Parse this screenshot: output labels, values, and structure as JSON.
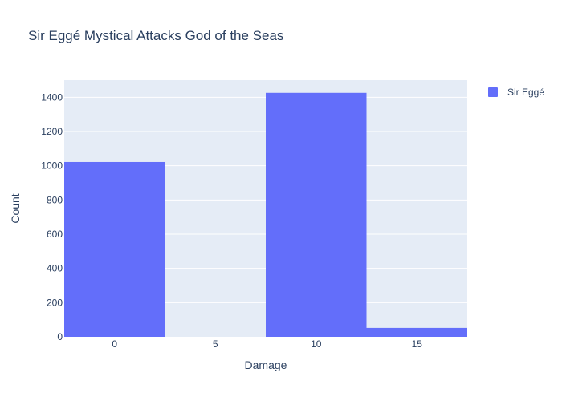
{
  "chart_data": {
    "type": "bar",
    "title": "Sir Eggé Mystical Attacks God of the Seas",
    "xlabel": "Damage",
    "ylabel": "Count",
    "x": [
      0,
      5,
      10,
      15
    ],
    "x_ticks": [
      "0",
      "5",
      "10",
      "15"
    ],
    "xlim": [
      -2.5,
      17.5
    ],
    "bar_width": 5,
    "ylim": [
      0,
      1500
    ],
    "y_ticks": [
      0,
      200,
      400,
      600,
      800,
      1000,
      1200,
      1400
    ],
    "grid": true,
    "legend_position": "top-right",
    "series": [
      {
        "name": "Sir Eggé",
        "color": "#636efa",
        "values": [
          1022,
          0,
          1426,
          52
        ]
      }
    ]
  },
  "colors": {
    "plot_background": "#e5ecf6",
    "grid": "#ffffff",
    "text": "#2a3f5f"
  }
}
